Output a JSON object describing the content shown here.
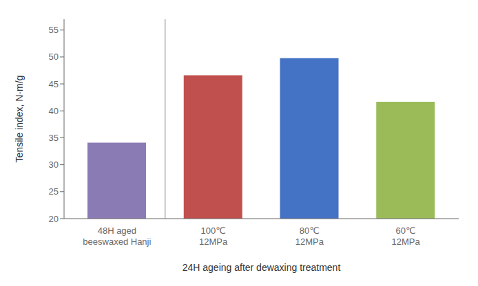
{
  "chart_data": {
    "type": "bar",
    "categories": [
      "48H aged\nbeeswaxed Hanji",
      "100℃\n12MPa",
      "80℃\n12MPa",
      "60℃\n12MPa"
    ],
    "values": [
      34.1,
      46.6,
      49.8,
      41.7
    ],
    "colors": [
      "#8B7BB5",
      "#C0504D",
      "#4472C4",
      "#9BBB59"
    ],
    "ylabel": "Tensile index, N·m/g",
    "xlabel": "24H ageing after dewaxing treatment",
    "ylim": [
      20,
      57
    ],
    "yticks": [
      20,
      25,
      30,
      35,
      40,
      45,
      50,
      55
    ],
    "grid": false
  }
}
